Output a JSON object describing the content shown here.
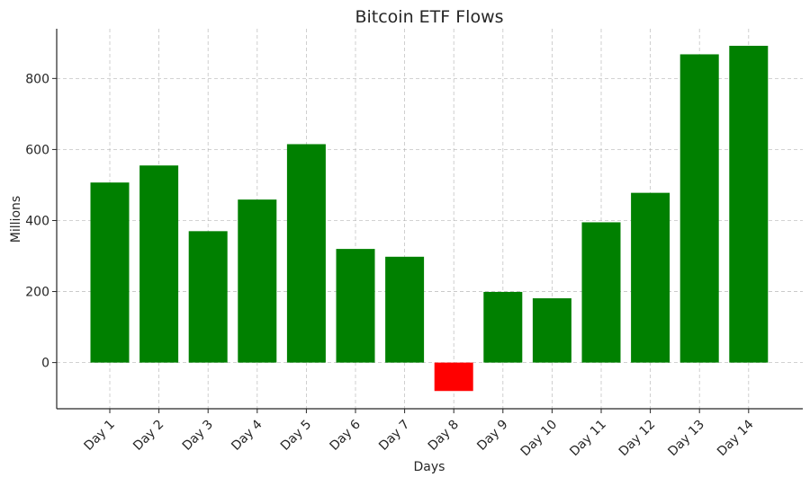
{
  "chart_data": {
    "type": "bar",
    "title": "Bitcoin ETF Flows",
    "xlabel": "Days",
    "ylabel": "Millions",
    "categories": [
      "Day 1",
      "Day 2",
      "Day 3",
      "Day 4",
      "Day 5",
      "Day 6",
      "Day 7",
      "Day 8",
      "Day 9",
      "Day 10",
      "Day 11",
      "Day 12",
      "Day 13",
      "Day 14"
    ],
    "values": [
      507,
      555,
      370,
      459,
      615,
      320,
      298,
      -80,
      199,
      181,
      395,
      478,
      868,
      892
    ],
    "ylim": [
      -130,
      940
    ],
    "yticks": [
      0,
      200,
      400,
      600,
      800
    ],
    "grid": true,
    "colors": {
      "positive": "#008000",
      "negative": "#ff0000"
    }
  }
}
